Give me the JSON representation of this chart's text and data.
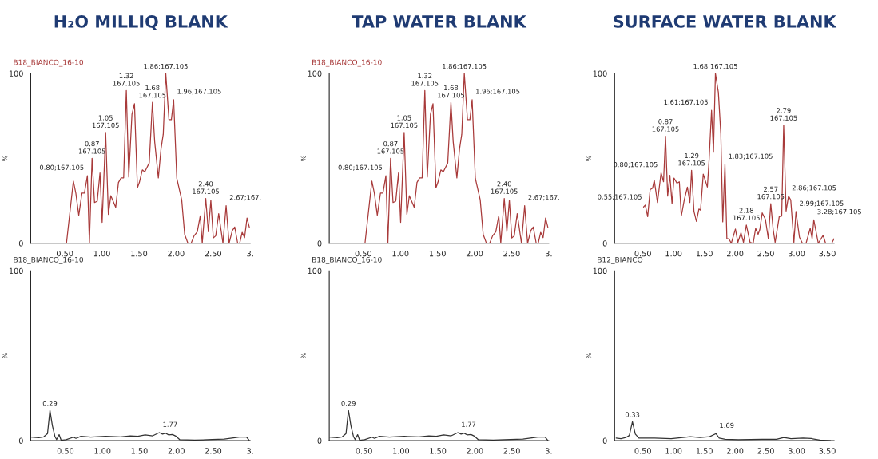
{
  "chart_data": [
    {
      "type": "line",
      "title": "H₂O MILLIQ BLANK",
      "ylabel": "%",
      "xlim": [
        0.04,
        3.0
      ],
      "ylim": [
        0,
        100
      ],
      "yticks": [
        0,
        100
      ],
      "xticks": [
        {
          "value": 0.5,
          "label": "0.50"
        },
        {
          "value": 1.0,
          "label": "1.00"
        },
        {
          "value": 1.5,
          "label": "1.50"
        },
        {
          "value": 2.0,
          "label": "2.00"
        },
        {
          "value": 2.5,
          "label": "2.50"
        },
        {
          "value": 3.0,
          "label": "3."
        }
      ],
      "grid": false,
      "legend": false,
      "marker": "none",
      "line_style": "solid",
      "annotations": [
        "B18_BIANCO_16-10",
        {
          "text": "0.80;167.105",
          "x": 0.804,
          "y": 39.8
        },
        {
          "text": "0.87\n167.105",
          "x": 0.867,
          "y": 50
        },
        {
          "text": "1.05\n167.105",
          "x": 1.05,
          "y": 65.3
        },
        {
          "text": "1.32\n167.105",
          "x": 1.329,
          "y": 90
        },
        {
          "text": "1.68\n167.105",
          "x": 1.681,
          "y": 83
        },
        {
          "text": "1.86;167.105",
          "x": 1.861,
          "y": 100
        },
        {
          "text": "1.96;167.105",
          "x": 1.967,
          "y": 84.6
        },
        {
          "text": "2.40\n167.105",
          "x": 2.4,
          "y": 26.4
        },
        {
          "text": "2.67;167.",
          "x": 2.675,
          "y": 22.2
        }
      ],
      "series": [
        {
          "color": "#a83a3a",
          "x": [
            0.522,
            0.615,
            0.648,
            0.688,
            0.731,
            0.764,
            0.804,
            0.831,
            0.867,
            0.9,
            0.937,
            0.974,
            1.003,
            1.05,
            1.087,
            1.12,
            1.186,
            1.223,
            1.259,
            1.293,
            1.329,
            1.362,
            1.405,
            1.439,
            1.479,
            1.505,
            1.545,
            1.578,
            1.638,
            1.681,
            1.711,
            1.761,
            1.797,
            1.827,
            1.861,
            1.904,
            1.937,
            1.967,
            2.01,
            2.043,
            2.076,
            2.116,
            2.16,
            2.203,
            2.243,
            2.286,
            2.326,
            2.353,
            2.4,
            2.435,
            2.469,
            2.502,
            2.535,
            2.575,
            2.632,
            2.675,
            2.715,
            2.758,
            2.791,
            2.831,
            2.858,
            2.891,
            2.924,
            2.957,
            2.99
          ],
          "values": [
            0,
            36.6,
            29.6,
            16.5,
            29.6,
            29.6,
            39.8,
            0,
            50,
            24,
            24.8,
            41.4,
            12.3,
            65.3,
            17,
            28,
            21.2,
            35.8,
            38.5,
            38.5,
            90,
            39,
            76,
            82.2,
            32.7,
            35.8,
            43.2,
            42.1,
            47.3,
            83,
            60,
            38.5,
            55.5,
            64.2,
            100,
            72.8,
            72.8,
            84.6,
            38.2,
            31.9,
            25.6,
            5.2,
            0,
            0,
            4.4,
            6.8,
            16.2,
            0,
            26.4,
            6.8,
            25.3,
            3.1,
            4.4,
            17.5,
            0,
            22.2,
            0,
            7.5,
            9.6,
            0,
            0,
            6.4,
            3.3,
            14.9,
            9.1
          ]
        }
      ]
    },
    {
      "type": "line",
      "title": "TAP WATER BLANK",
      "ylabel": "%",
      "xlim": [
        0.04,
        3.0
      ],
      "ylim": [
        0,
        100
      ],
      "yticks": [
        0,
        100
      ],
      "xticks": [
        {
          "value": 0.5,
          "label": "0.50"
        },
        {
          "value": 1.0,
          "label": "1.00"
        },
        {
          "value": 1.5,
          "label": "1.50"
        },
        {
          "value": 2.0,
          "label": "2.00"
        },
        {
          "value": 2.5,
          "label": "2.50"
        },
        {
          "value": 3.0,
          "label": "3."
        }
      ],
      "grid": false,
      "legend": false,
      "marker": "none",
      "line_style": "solid",
      "annotations": [
        "B18_BIANCO_16-10",
        {
          "text": "0.80;167.105",
          "x": 0.804,
          "y": 39.8
        },
        {
          "text": "0.87\n167.105",
          "x": 0.867,
          "y": 50
        },
        {
          "text": "1.05\n167.105",
          "x": 1.05,
          "y": 65.3
        },
        {
          "text": "1.32\n167.105",
          "x": 1.329,
          "y": 90
        },
        {
          "text": "1.68\n167.105",
          "x": 1.681,
          "y": 83
        },
        {
          "text": "1.86;167.105",
          "x": 1.861,
          "y": 100
        },
        {
          "text": "1.96;167.105",
          "x": 1.967,
          "y": 84.6
        },
        {
          "text": "2.40\n167.105",
          "x": 2.4,
          "y": 26.4
        },
        {
          "text": "2.67;167.",
          "x": 2.675,
          "y": 22.2
        }
      ],
      "series": [
        {
          "color": "#a83a3a",
          "x": [
            0.522,
            0.615,
            0.648,
            0.688,
            0.731,
            0.764,
            0.804,
            0.831,
            0.867,
            0.9,
            0.937,
            0.974,
            1.003,
            1.05,
            1.087,
            1.12,
            1.186,
            1.223,
            1.259,
            1.293,
            1.329,
            1.362,
            1.405,
            1.439,
            1.479,
            1.505,
            1.545,
            1.578,
            1.638,
            1.681,
            1.711,
            1.761,
            1.797,
            1.827,
            1.861,
            1.904,
            1.937,
            1.967,
            2.01,
            2.043,
            2.076,
            2.116,
            2.16,
            2.203,
            2.243,
            2.286,
            2.326,
            2.353,
            2.4,
            2.435,
            2.469,
            2.502,
            2.535,
            2.575,
            2.632,
            2.675,
            2.715,
            2.758,
            2.791,
            2.831,
            2.858,
            2.891,
            2.924,
            2.957,
            2.99
          ],
          "values": [
            0,
            36.6,
            29.6,
            16.5,
            29.6,
            29.6,
            39.8,
            0,
            50,
            24,
            24.8,
            41.4,
            12.3,
            65.3,
            17,
            28,
            21.2,
            35.8,
            38.5,
            38.5,
            90,
            39,
            76,
            82.2,
            32.7,
            35.8,
            43.2,
            42.1,
            47.3,
            83,
            60,
            38.5,
            55.5,
            64.2,
            100,
            72.8,
            72.8,
            84.6,
            38.2,
            31.9,
            25.6,
            5.2,
            0,
            0,
            4.4,
            6.8,
            16.2,
            0,
            26.4,
            6.8,
            25.3,
            3.1,
            4.4,
            17.5,
            0,
            22.2,
            0,
            7.5,
            9.6,
            0,
            0,
            6.4,
            3.3,
            14.9,
            9.1
          ]
        }
      ]
    },
    {
      "type": "line",
      "title": "SURFACE WATER BLANK",
      "ylabel": "%",
      "xlim": [
        0.04,
        3.61
      ],
      "ylim": [
        0,
        100
      ],
      "yticks": [
        0,
        100
      ],
      "xticks": [
        {
          "value": 0.5,
          "label": "0.50"
        },
        {
          "value": 1.0,
          "label": "1.00"
        },
        {
          "value": 1.5,
          "label": "1.50"
        },
        {
          "value": 2.0,
          "label": "2.00"
        },
        {
          "value": 2.5,
          "label": "2.50"
        },
        {
          "value": 3.0,
          "label": "3.00"
        },
        {
          "value": 3.5,
          "label": "3.50"
        }
      ],
      "grid": false,
      "legend": false,
      "marker": "none",
      "line_style": "solid",
      "annotations": [
        {
          "text": "0.55;167.105",
          "x": 0.539,
          "y": 22.5
        },
        {
          "text": "0.80;167.105",
          "x": 0.796,
          "y": 41.5
        },
        {
          "text": "0.87\n167.105",
          "x": 0.868,
          "y": 63.1
        },
        {
          "text": "1.29\n167.105",
          "x": 1.292,
          "y": 43
        },
        {
          "text": "1.61;167.105",
          "x": 1.617,
          "y": 78.3
        },
        {
          "text": "1.68;167.105",
          "x": 1.68,
          "y": 100
        },
        {
          "text": "1.83;167.105",
          "x": 1.835,
          "y": 46.4
        },
        {
          "text": "2.18\n167.105",
          "x": 2.183,
          "y": 10.8
        },
        {
          "text": "2.57\n167.105",
          "x": 2.58,
          "y": 23.3
        },
        {
          "text": "2.79\n167.105",
          "x": 2.79,
          "y": 69.6
        },
        {
          "text": "2.86;167.105",
          "x": 2.869,
          "y": 27.8
        },
        {
          "text": "2.99;167.105",
          "x": 2.99,
          "y": 18.7
        },
        {
          "text": "3.28;167.105",
          "x": 3.28,
          "y": 13.8
        }
      ],
      "series": [
        {
          "color": "#a83a3a",
          "x": [
            0.511,
            0.539,
            0.578,
            0.618,
            0.657,
            0.685,
            0.737,
            0.796,
            0.836,
            0.868,
            0.903,
            0.939,
            0.974,
            1.006,
            1.054,
            1.093,
            1.125,
            1.173,
            1.224,
            1.264,
            1.292,
            1.331,
            1.371,
            1.411,
            1.438,
            1.482,
            1.549,
            1.577,
            1.617,
            1.648,
            1.68,
            1.728,
            1.768,
            1.799,
            1.835,
            1.866,
            1.898,
            1.938,
            2.005,
            2.045,
            2.096,
            2.136,
            2.183,
            2.243,
            2.294,
            2.334,
            2.374,
            2.402,
            2.441,
            2.493,
            2.54,
            2.58,
            2.619,
            2.651,
            2.718,
            2.758,
            2.79,
            2.829,
            2.869,
            2.905,
            2.956,
            2.99,
            3.047,
            3.095,
            3.154,
            3.222,
            3.253,
            3.28,
            3.353,
            3.432,
            3.472,
            3.571,
            3.61
          ],
          "values": [
            21.4,
            22.5,
            15.7,
            31.6,
            32.4,
            37.2,
            24,
            41.5,
            36.2,
            63.1,
            27.8,
            40,
            23.3,
            38.4,
            35.4,
            36.2,
            16,
            25.5,
            33.1,
            24,
            43,
            18.7,
            12.9,
            20.2,
            19.5,
            40.7,
            33.1,
            49.1,
            78.3,
            53.6,
            100,
            88.9,
            64.3,
            12.6,
            46.4,
            2.7,
            2.7,
            0,
            8.4,
            0.5,
            6.2,
            0.5,
            10.8,
            0.5,
            0,
            8.8,
            5.3,
            8.1,
            17.9,
            14.1,
            2.7,
            23.3,
            8.1,
            0.5,
            15.7,
            16,
            69.6,
            19,
            27.8,
            25.5,
            0.5,
            18.7,
            3.5,
            0,
            0,
            8.8,
            2.7,
            13.8,
            0,
            4.7,
            0,
            0,
            2.7
          ]
        }
      ]
    },
    {
      "type": "line",
      "ylabel": "%",
      "xlim": [
        0.03,
        3.0
      ],
      "ylim": [
        0,
        100
      ],
      "yticks": [
        0,
        100
      ],
      "xticks": [
        {
          "value": 0.5,
          "label": "0.50"
        },
        {
          "value": 1.0,
          "label": "1.00"
        },
        {
          "value": 1.5,
          "label": "1.50"
        },
        {
          "value": 2.0,
          "label": "2.00"
        },
        {
          "value": 2.5,
          "label": "2.50"
        },
        {
          "value": 3.0,
          "label": "3."
        }
      ],
      "grid": false,
      "legend": false,
      "marker": "none",
      "line_style": "solid",
      "annotations": [
        "B18_BIANCO_16-10",
        {
          "text": "0.29",
          "x": 0.29,
          "y": 17.8
        },
        {
          "text": "1.77",
          "x": 1.77,
          "y": 4.7
        }
      ],
      "series": [
        {
          "color": "#333333",
          "x": [
            0.032,
            0.139,
            0.206,
            0.257,
            0.29,
            0.323,
            0.357,
            0.38,
            0.414,
            0.441,
            0.508,
            0.608,
            0.642,
            0.709,
            0.843,
            1.044,
            1.244,
            1.378,
            1.479,
            1.579,
            1.68,
            1.77,
            1.814,
            1.854,
            1.898,
            1.948,
            1.998,
            2.048,
            2.249,
            2.483,
            2.651,
            2.852,
            2.952,
            2.986
          ],
          "values": [
            2,
            1.7,
            2.2,
            4.1,
            17.8,
            8.8,
            2.5,
            0.6,
            3.5,
            0.2,
            0.5,
            2,
            1.3,
            2.5,
            2,
            2.5,
            2.2,
            2.8,
            2.5,
            3.3,
            2.8,
            4.7,
            3.8,
            4.4,
            3.3,
            3.6,
            2.5,
            0.5,
            0.3,
            0.6,
            0.9,
            2,
            2,
            0.2
          ]
        }
      ]
    },
    {
      "type": "line",
      "ylabel": "%",
      "xlim": [
        0.03,
        3.0
      ],
      "ylim": [
        0,
        100
      ],
      "yticks": [
        0,
        100
      ],
      "xticks": [
        {
          "value": 0.5,
          "label": "0.50"
        },
        {
          "value": 1.0,
          "label": "1.00"
        },
        {
          "value": 1.5,
          "label": "1.50"
        },
        {
          "value": 2.0,
          "label": "2.00"
        },
        {
          "value": 2.5,
          "label": "2.50"
        },
        {
          "value": 3.0,
          "label": "3."
        }
      ],
      "grid": false,
      "legend": false,
      "marker": "none",
      "line_style": "solid",
      "annotations": [
        "B18_BIANCO_16-10",
        {
          "text": "0.29",
          "x": 0.29,
          "y": 17.8
        },
        {
          "text": "1.77",
          "x": 1.77,
          "y": 4.7
        }
      ],
      "series": [
        {
          "color": "#333333",
          "x": [
            0.032,
            0.139,
            0.206,
            0.257,
            0.29,
            0.323,
            0.357,
            0.38,
            0.414,
            0.441,
            0.508,
            0.608,
            0.642,
            0.709,
            0.843,
            1.044,
            1.244,
            1.378,
            1.479,
            1.579,
            1.68,
            1.77,
            1.814,
            1.854,
            1.898,
            1.948,
            1.998,
            2.048,
            2.249,
            2.483,
            2.651,
            2.852,
            2.952,
            2.986
          ],
          "values": [
            2,
            1.7,
            2.2,
            4.1,
            17.8,
            8.8,
            2.5,
            0.6,
            3.5,
            0.2,
            0.5,
            2,
            1.3,
            2.5,
            2,
            2.5,
            2.2,
            2.8,
            2.5,
            3.3,
            2.8,
            4.7,
            3.8,
            4.4,
            3.3,
            3.6,
            2.5,
            0.5,
            0.3,
            0.6,
            0.9,
            2,
            2,
            0.2
          ]
        }
      ]
    },
    {
      "type": "line",
      "ylabel": "%",
      "xlim": [
        0.04,
        3.61
      ],
      "ylim": [
        0,
        100
      ],
      "yticks": [
        0,
        100
      ],
      "xticks": [
        {
          "value": 0.5,
          "label": "0.50"
        },
        {
          "value": 1.0,
          "label": "1.00"
        },
        {
          "value": 1.5,
          "label": "1.50"
        },
        {
          "value": 2.0,
          "label": "2.00"
        },
        {
          "value": 2.5,
          "label": "2.50"
        },
        {
          "value": 3.0,
          "label": "3.00"
        },
        {
          "value": 3.5,
          "label": "3.50"
        }
      ],
      "grid": false,
      "legend": false,
      "marker": "none",
      "line_style": "solid",
      "annotations": [
        "B12_BIANCO",
        {
          "text": "0.33",
          "x": 0.33,
          "y": 11.1
        },
        {
          "text": "1.69",
          "x": 1.69,
          "y": 4.1
        }
      ],
      "series": [
        {
          "color": "#333333",
          "x": [
            0.065,
            0.143,
            0.221,
            0.279,
            0.33,
            0.377,
            0.435,
            0.689,
            0.961,
            1.273,
            1.429,
            1.585,
            1.69,
            1.741,
            1.838,
            2.053,
            2.442,
            2.675,
            2.792,
            2.909,
            3.104,
            3.24,
            3.377,
            3.552
          ],
          "values": [
            1.5,
            1.1,
            1.8,
            3,
            11.1,
            3.8,
            1.5,
            1.5,
            1.1,
            2.3,
            1.8,
            2.3,
            4.1,
            1.5,
            0.8,
            0.5,
            0.8,
            0.8,
            1.8,
            1.1,
            1.5,
            1.2,
            0.3,
            0
          ]
        }
      ]
    }
  ]
}
